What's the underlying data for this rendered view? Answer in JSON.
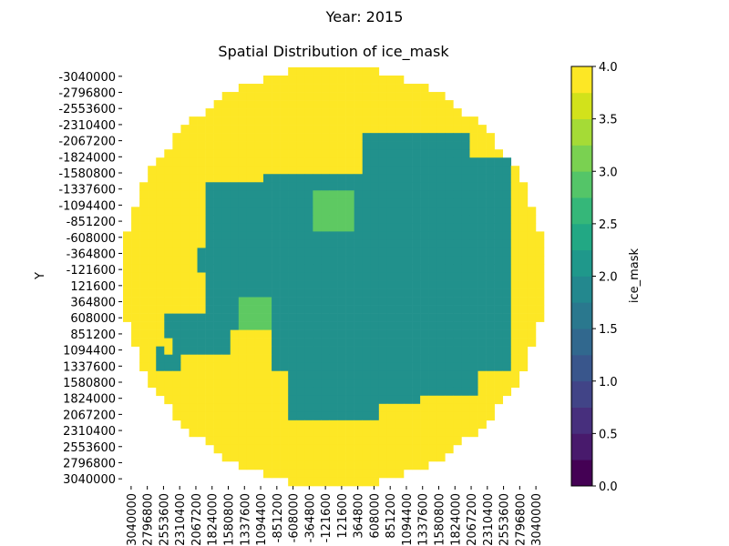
{
  "suptitle": "Year: 2015",
  "chart_data": {
    "type": "heatmap",
    "title": "Spatial Distribution of ice_mask",
    "xlabel": "",
    "ylabel": "Y",
    "colorbar_label": "ice_mask",
    "colormap": "viridis",
    "vmin": 0.0,
    "vmax": 4.0,
    "colorbar_ticks": [
      "0.0",
      "0.5",
      "1.0",
      "1.5",
      "2.0",
      "2.5",
      "3.0",
      "3.5",
      "4.0"
    ],
    "y_ticks": [
      "-3040000",
      "-2796800",
      "-2553600",
      "-2310400",
      "-2067200",
      "-1824000",
      "-1580800",
      "-1337600",
      "-1094400",
      "-851200",
      "-608000",
      "-364800",
      "-121600",
      "121600",
      "364800",
      "608000",
      "851200",
      "1094400",
      "1337600",
      "1580800",
      "1824000",
      "2067200",
      "2310400",
      "2553600",
      "2796800",
      "3040000"
    ],
    "x_ticks": [
      "-3040000",
      "-2796800",
      "-2553600",
      "-2310400",
      "-2067200",
      "-1824000",
      "-1580800",
      "-1337600",
      "-1094400",
      "-851200",
      "-608000",
      "-364800",
      "-121600",
      "121600",
      "364800",
      "608000",
      "851200",
      "1094400",
      "1337600",
      "1580800",
      "1824000",
      "2067200",
      "2310400",
      "2553600",
      "2796800",
      "3040000"
    ],
    "grid": false,
    "values_legend": {
      "no_data": "NaN outside the circular domain",
      "ocean": 4,
      "grounded_ice": 2,
      "floating_ice_shelf": 3
    }
  },
  "colors": {
    "ocean": "#fde725",
    "grounded": "#21918c",
    "shelf": "#5ec962",
    "edge_dark": "#3b528b",
    "edge_darkest": "#440154"
  }
}
